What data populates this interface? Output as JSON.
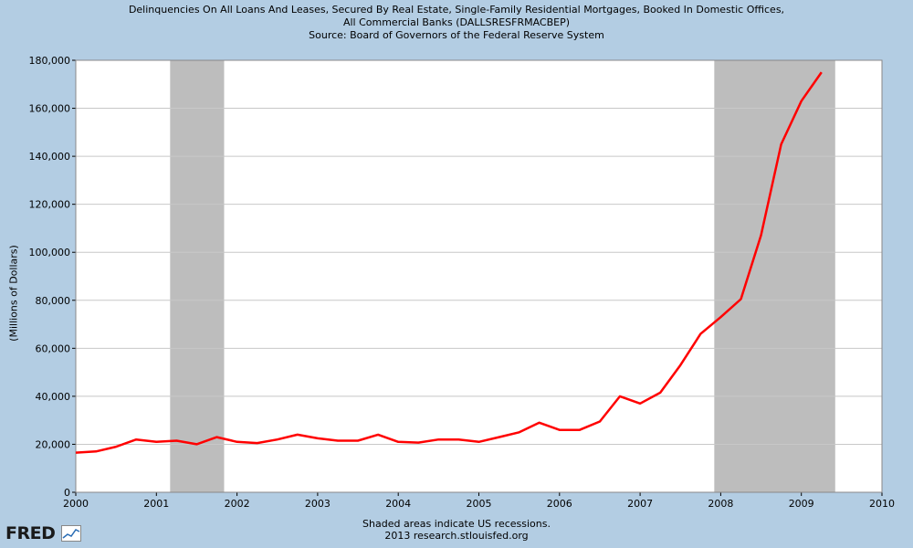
{
  "title": {
    "line1": "Delinquencies On All Loans And Leases, Secured By Real Estate, Single-Family Residential Mortgages, Booked In Domestic Offices,",
    "line2": "All Commercial Banks (DALLSRESFRMACBEP)",
    "line3": "Source: Board of Governors of the Federal Reserve System"
  },
  "footer": {
    "line1": "Shaded areas indicate US recessions.",
    "line2": "2013 research.stlouisfed.org"
  },
  "logo": {
    "text": "FRED",
    "icon": "chart-line-icon"
  },
  "chart_data": {
    "type": "line",
    "ylabel": "(Millions of Dollars)",
    "xlabel": "",
    "xlim": [
      2000,
      2010
    ],
    "ylim": [
      0,
      180000
    ],
    "xticks": [
      "2000",
      "2001",
      "2002",
      "2003",
      "2004",
      "2005",
      "2006",
      "2007",
      "2008",
      "2009",
      "2010"
    ],
    "yticks": [
      "0",
      "20,000",
      "40,000",
      "60,000",
      "80,000",
      "100,000",
      "120,000",
      "140,000",
      "160,000",
      "180,000"
    ],
    "grid": true,
    "recessions": [
      [
        2001.17,
        2001.84
      ],
      [
        2007.92,
        2009.42
      ]
    ],
    "series": [
      {
        "color": "#ff0000",
        "x": [
          2000.0,
          2000.25,
          2000.5,
          2000.75,
          2001.0,
          2001.25,
          2001.5,
          2001.75,
          2002.0,
          2002.25,
          2002.5,
          2002.75,
          2003.0,
          2003.25,
          2003.5,
          2003.75,
          2004.0,
          2004.25,
          2004.5,
          2004.75,
          2005.0,
          2005.25,
          2005.5,
          2005.75,
          2006.0,
          2006.25,
          2006.5,
          2006.75,
          2007.0,
          2007.25,
          2007.5,
          2007.75,
          2008.0,
          2008.25,
          2008.5,
          2008.75,
          2009.0,
          2009.25
        ],
        "values": [
          16500,
          17000,
          19000,
          22000,
          21000,
          21500,
          20000,
          23000,
          21000,
          20500,
          22000,
          24000,
          22500,
          21500,
          21500,
          24000,
          21000,
          20700,
          22000,
          22000,
          21000,
          23000,
          25000,
          29000,
          26000,
          26000,
          29500,
          40000,
          37000,
          41500,
          53000,
          66000,
          73000,
          80500,
          107000,
          145000,
          163000,
          175000
        ]
      }
    ]
  }
}
